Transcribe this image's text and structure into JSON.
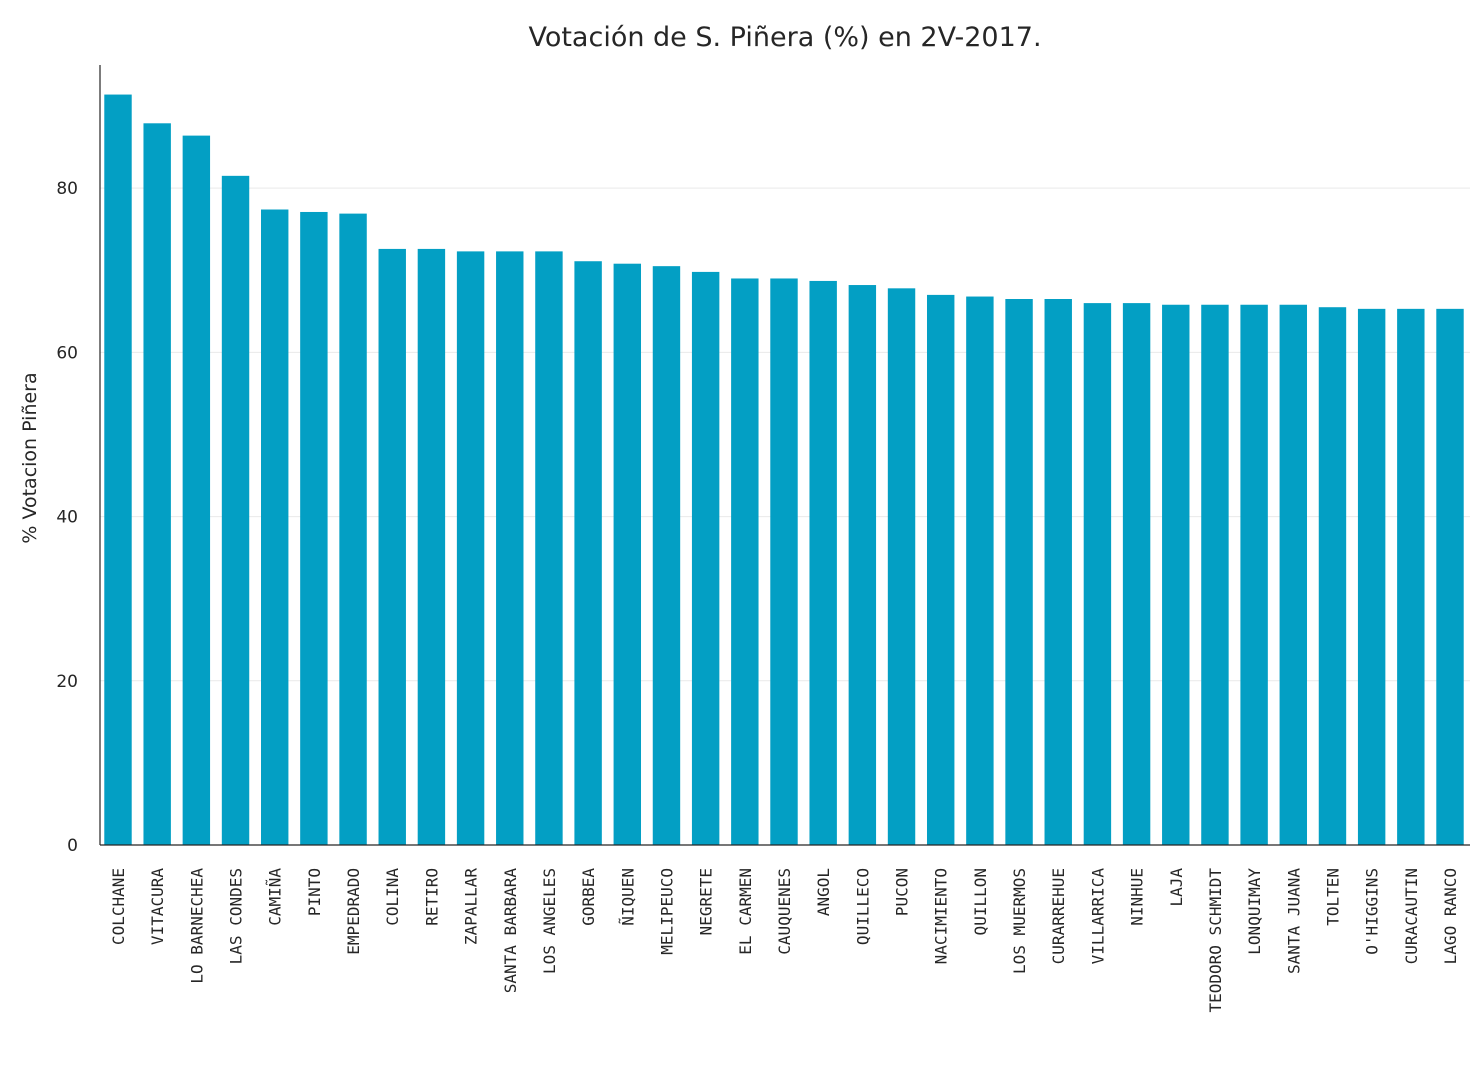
{
  "chart_data": {
    "type": "bar",
    "title": "Votación de S. Piñera (%) en 2V-2017.",
    "xlabel": "",
    "ylabel": "% Votacion Piñera",
    "ylim": [
      0,
      95
    ],
    "yticks": [
      0,
      20,
      40,
      60,
      80
    ],
    "grid": true,
    "bar_color": "#039fc4",
    "categories": [
      "COLCHANE",
      "VITACURA",
      "LO BARNECHEA",
      "LAS CONDES",
      "CAMIÑA",
      "PINTO",
      "EMPEDRADO",
      "COLINA",
      "RETIRO",
      "ZAPALLAR",
      "SANTA BARBARA",
      "LOS ANGELES",
      "GORBEA",
      "ÑIQUEN",
      "MELIPEUCO",
      "NEGRETE",
      "EL CARMEN",
      "CAUQUENES",
      "ANGOL",
      "QUILLECO",
      "PUCON",
      "NACIMIENTO",
      "QUILLON",
      "LOS MUERMOS",
      "CURARREHUE",
      "VILLARRICA",
      "NINHUE",
      "LAJA",
      "TEODORO SCHMIDT",
      "LONQUIMAY",
      "SANTA JUANA",
      "TOLTEN",
      "O'HIGGINS",
      "CURACAUTIN",
      "LAGO RANCO"
    ],
    "values": [
      91.4,
      87.9,
      86.4,
      81.5,
      77.4,
      77.1,
      76.9,
      72.6,
      72.6,
      72.3,
      72.3,
      72.3,
      71.1,
      70.8,
      70.5,
      69.8,
      69.0,
      69.0,
      68.7,
      68.2,
      67.8,
      67.0,
      66.8,
      66.5,
      66.5,
      66.0,
      66.0,
      65.8,
      65.8,
      65.8,
      65.8,
      65.5,
      65.3,
      65.3,
      65.3
    ]
  }
}
